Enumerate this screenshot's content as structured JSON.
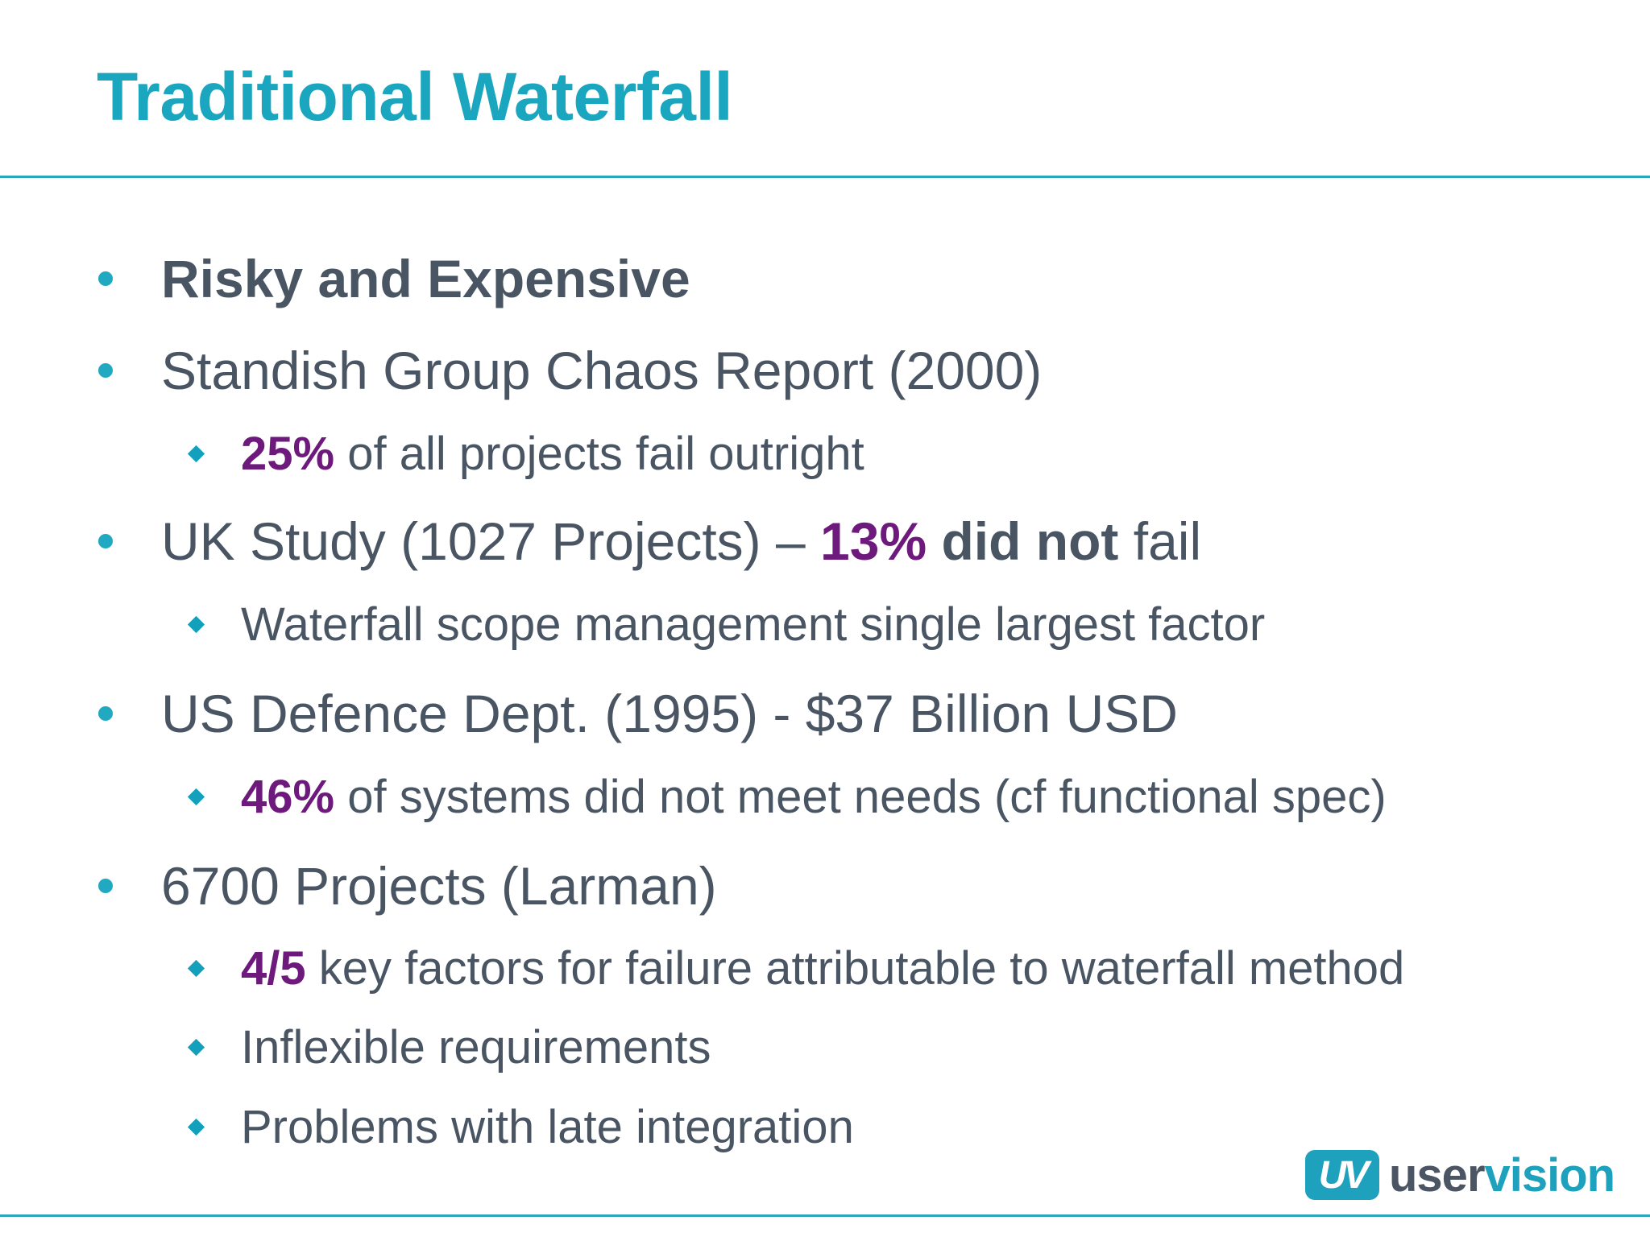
{
  "title": "Traditional Waterfall",
  "bullets": [
    {
      "text": "Risky and Expensive"
    },
    {
      "text": "Standish Group Chaos Report (2000)"
    },
    {
      "accent": "25%",
      "text": " of all projects fail outright"
    },
    {
      "lead": "UK Study (1027 Projects) – ",
      "accent": "13%",
      "strong": " did not",
      "tail": " fail"
    },
    {
      "text": "Waterfall scope management single largest factor"
    },
    {
      "text": "US Defence Dept. (1995) - $37 Billion USD"
    },
    {
      "accent": "46%",
      "text": " of systems did not meet needs (cf functional spec)"
    },
    {
      "text": "6700 Projects (Larman)"
    },
    {
      "accent": "4/5",
      "text": " key factors for failure attributable to waterfall method"
    },
    {
      "text": "Inflexible requirements"
    },
    {
      "text": "Problems with late integration"
    }
  ],
  "logo": {
    "mark": "UV",
    "user": "user",
    "vision": "vision"
  },
  "colors": {
    "title": "#1aa6be",
    "accent": "#6e1a7c",
    "body": "#4a5563",
    "rule": "#2aa7bd"
  }
}
